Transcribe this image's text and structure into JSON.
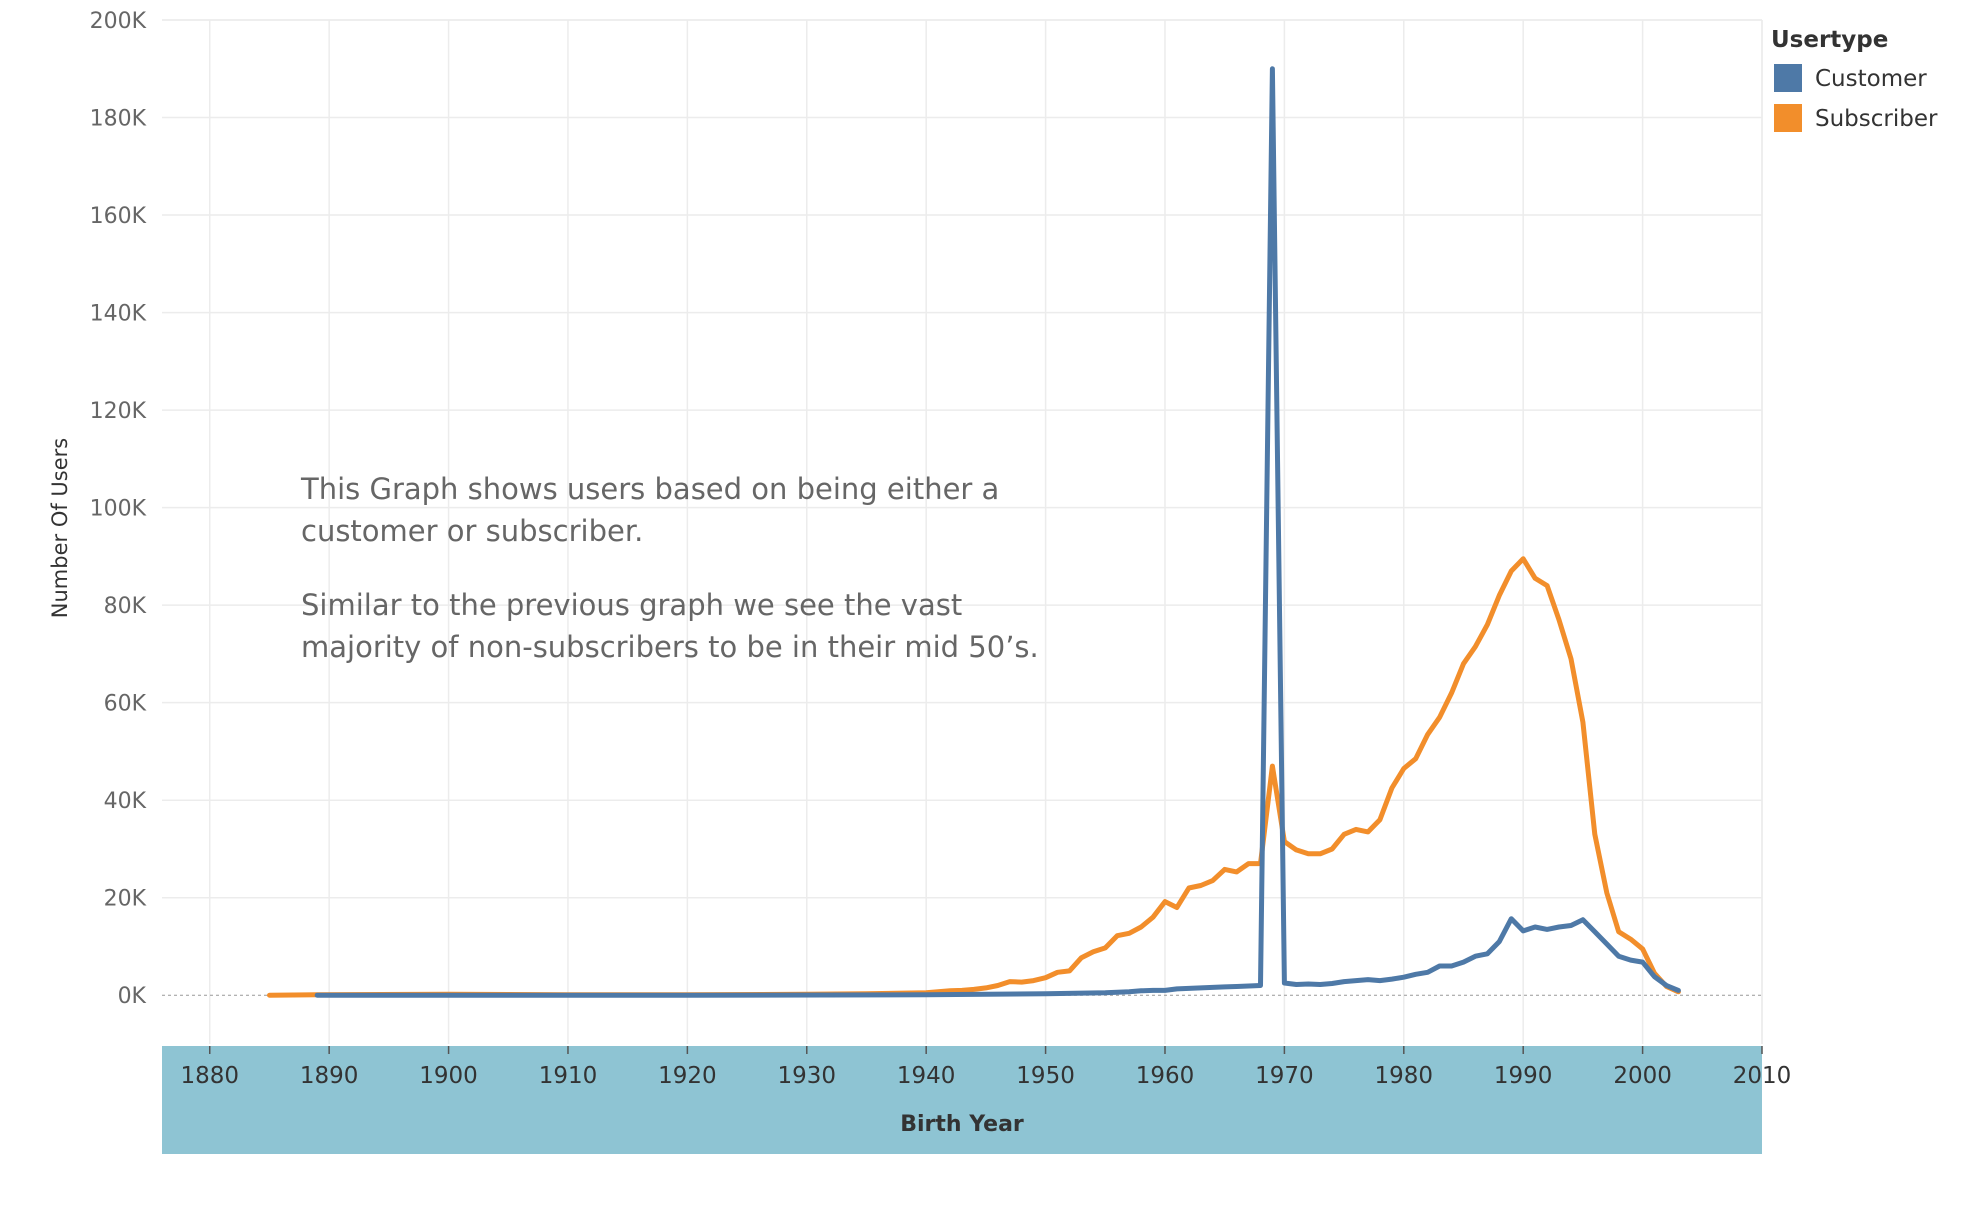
{
  "chart_data": {
    "type": "line",
    "xlabel": "Birth Year",
    "ylabel": "Number Of Users",
    "xlim": [
      1876,
      2010
    ],
    "ylim": [
      -10000,
      200000
    ],
    "x_ticks": [
      1880,
      1890,
      1900,
      1910,
      1920,
      1930,
      1940,
      1950,
      1960,
      1970,
      1980,
      1990,
      2000,
      2010
    ],
    "x_tick_labels": [
      "1880",
      "1890",
      "1900",
      "1910",
      "1920",
      "1930",
      "1940",
      "1950",
      "1960",
      "1970",
      "1980",
      "1990",
      "2000",
      "2010"
    ],
    "y_ticks": [
      0,
      20000,
      40000,
      60000,
      80000,
      100000,
      120000,
      140000,
      160000,
      180000,
      200000
    ],
    "y_tick_labels": [
      "0K",
      "20K",
      "40K",
      "60K",
      "80K",
      "100K",
      "120K",
      "140K",
      "160K",
      "180K",
      "200K"
    ],
    "grid": true,
    "legend": {
      "title": "Usertype",
      "position": "top-right"
    },
    "annotation": {
      "lines": [
        "This Graph shows users based on being either a",
        "customer or subscriber.",
        "",
        "Similar to the previous graph we see the vast",
        "majority of non-subscribers to be in their mid 50’s."
      ]
    },
    "series": [
      {
        "name": "Customer",
        "color": "#4e79a7",
        "x": [
          1889,
          1900,
          1920,
          1940,
          1950,
          1955,
          1957,
          1958,
          1959,
          1960,
          1961,
          1962,
          1963,
          1964,
          1965,
          1966,
          1967,
          1968,
          1969,
          1970,
          1971,
          1972,
          1973,
          1974,
          1975,
          1976,
          1977,
          1978,
          1979,
          1980,
          1981,
          1982,
          1983,
          1984,
          1985,
          1986,
          1987,
          1988,
          1989,
          1990,
          1991,
          1992,
          1993,
          1994,
          1995,
          1996,
          1997,
          1998,
          1999,
          2000,
          2001,
          2002,
          2003
        ],
        "values": [
          0,
          0,
          0,
          100,
          300,
          500,
          700,
          900,
          1000,
          1000,
          1300,
          1400,
          1500,
          1600,
          1700,
          1800,
          1900,
          2000,
          190000,
          2500,
          2200,
          2300,
          2200,
          2400,
          2800,
          3000,
          3200,
          3000,
          3300,
          3700,
          4300,
          4700,
          6000,
          6000,
          6800,
          8000,
          8500,
          11000,
          15700,
          13200,
          14000,
          13500,
          14000,
          14300,
          15500,
          13000,
          10500,
          8000,
          7200,
          6800,
          3800,
          2000,
          1000
        ]
      },
      {
        "name": "Subscriber",
        "color": "#f28e2b",
        "x": [
          1885,
          1889,
          1900,
          1910,
          1920,
          1930,
          1935,
          1940,
          1941,
          1942,
          1943,
          1944,
          1945,
          1946,
          1947,
          1948,
          1949,
          1950,
          1951,
          1952,
          1953,
          1954,
          1955,
          1956,
          1957,
          1958,
          1959,
          1960,
          1961,
          1962,
          1963,
          1964,
          1965,
          1966,
          1967,
          1968,
          1969,
          1970,
          1971,
          1972,
          1973,
          1974,
          1975,
          1976,
          1977,
          1978,
          1979,
          1980,
          1981,
          1982,
          1983,
          1984,
          1985,
          1986,
          1987,
          1988,
          1989,
          1990,
          1991,
          1992,
          1993,
          1994,
          1995,
          1996,
          1997,
          1998,
          1999,
          2000,
          2001,
          2002,
          2003
        ],
        "values": [
          0,
          100,
          200,
          100,
          100,
          200,
          300,
          500,
          700,
          900,
          1000,
          1200,
          1500,
          2000,
          2800,
          2700,
          3000,
          3600,
          4700,
          5000,
          7700,
          8900,
          9700,
          12200,
          12700,
          14000,
          16000,
          19200,
          18000,
          22000,
          22500,
          23500,
          25800,
          25300,
          27000,
          27000,
          47000,
          31500,
          29800,
          29000,
          29000,
          30000,
          33000,
          34000,
          33500,
          36000,
          42500,
          46500,
          48500,
          53500,
          57000,
          62000,
          68000,
          71500,
          76000,
          82000,
          87000,
          89500,
          85500,
          84000,
          77000,
          69000,
          56000,
          33000,
          21000,
          13000,
          11500,
          9500,
          4500,
          1800,
          700
        ]
      }
    ]
  }
}
